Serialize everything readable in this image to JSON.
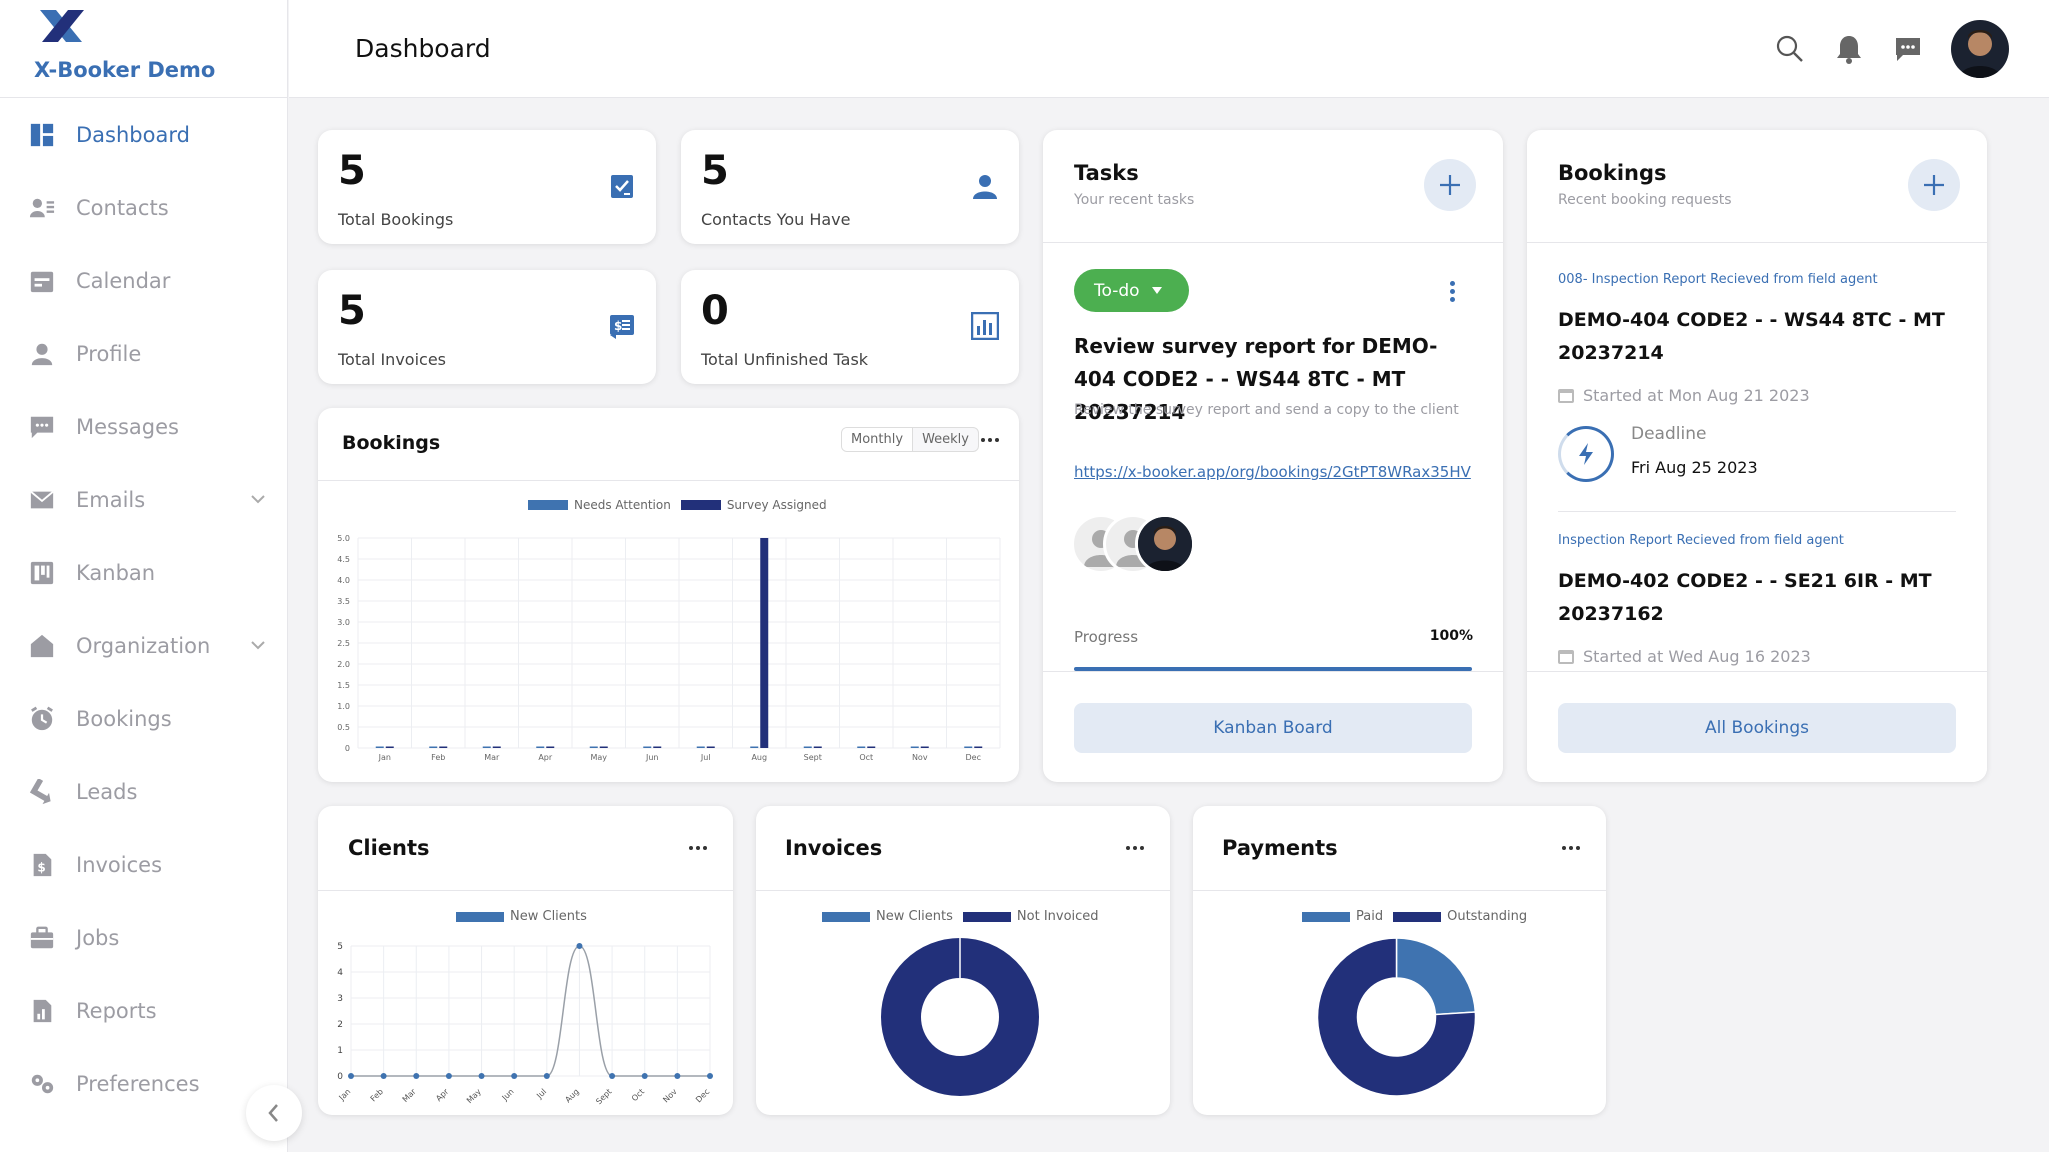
{
  "app": {
    "brand": "X-Booker Demo",
    "page_title": "Dashboard"
  },
  "sidebar": {
    "items": [
      {
        "label": "Dashboard",
        "icon": "dashboard-icon",
        "active": true
      },
      {
        "label": "Contacts",
        "icon": "contacts-icon"
      },
      {
        "label": "Calendar",
        "icon": "calendar-icon"
      },
      {
        "label": "Profile",
        "icon": "profile-icon"
      },
      {
        "label": "Messages",
        "icon": "messages-icon"
      },
      {
        "label": "Emails",
        "icon": "email-icon",
        "expandable": true
      },
      {
        "label": "Kanban",
        "icon": "kanban-icon"
      },
      {
        "label": "Organization",
        "icon": "organization-icon",
        "expandable": true
      },
      {
        "label": "Bookings",
        "icon": "bookings-icon"
      },
      {
        "label": "Leads",
        "icon": "leads-icon"
      },
      {
        "label": "Invoices",
        "icon": "invoices-icon"
      },
      {
        "label": "Jobs",
        "icon": "jobs-icon"
      },
      {
        "label": "Reports",
        "icon": "reports-icon"
      },
      {
        "label": "Preferences",
        "icon": "preferences-icon"
      }
    ]
  },
  "header": {
    "icons": [
      "search-icon",
      "bell-icon",
      "chat-icon"
    ]
  },
  "stats": [
    {
      "value": "5",
      "label": "Total Bookings",
      "icon": "checklist-icon"
    },
    {
      "value": "5",
      "label": "Contacts You Have",
      "icon": "person-icon"
    },
    {
      "value": "5",
      "label": "Total Invoices",
      "icon": "invoice-dollar-icon"
    },
    {
      "value": "0",
      "label": "Total Unfinished Task",
      "icon": "bar-chart-icon"
    }
  ],
  "bookings_chart": {
    "title": "Bookings",
    "toggle": [
      "Monthly",
      "Weekly"
    ],
    "selected_toggle": "Monthly"
  },
  "tasks": {
    "title": "Tasks",
    "subtitle": "Your recent tasks",
    "status": "To-do",
    "task_title": "Review survey report for DEMO-404 CODE2 - - WS44 8TC - MT 20237214",
    "task_desc": "Review the survey report and send a copy to the client",
    "link": "https://x-booker.app/org/bookings/2GtPT8WRax35HV",
    "progress_label": "Progress",
    "progress_value": "100%",
    "progress": 1.0,
    "button": "Kanban Board"
  },
  "bookings_panel": {
    "title": "Bookings",
    "subtitle": "Recent booking requests",
    "items": [
      {
        "tag": "008- Inspection Report Recieved from field agent",
        "title": "DEMO-404 CODE2 - - WS44 8TC - MT 20237214",
        "started": "Started at Mon Aug 21 2023",
        "deadline_label": "Deadline",
        "deadline": "Fri Aug 25 2023"
      },
      {
        "tag": "Inspection Report Recieved from field agent",
        "title": "DEMO-402 CODE2 - - SE21 6IR - MT 20237162",
        "started": "Started at Wed Aug 16 2023"
      }
    ],
    "button": "All Bookings"
  },
  "colors": {
    "accent": "#3a6fb3",
    "navy": "#22307a",
    "light_blue": "#3f73b0",
    "green": "#4caf50"
  },
  "chart_data": [
    {
      "type": "bar",
      "title": "Bookings",
      "categories": [
        "Jan",
        "Feb",
        "Mar",
        "Apr",
        "May",
        "Jun",
        "Jul",
        "Aug",
        "Sept",
        "Oct",
        "Nov",
        "Dec"
      ],
      "series": [
        {
          "name": "Needs Attention",
          "color": "#3f73b0",
          "values": [
            0,
            0,
            0,
            0,
            0,
            0,
            0,
            0,
            0,
            0,
            0,
            0
          ]
        },
        {
          "name": "Survey Assigned",
          "color": "#22307a",
          "values": [
            0,
            0,
            0,
            0,
            0,
            0,
            0,
            5,
            0,
            0,
            0,
            0
          ]
        }
      ],
      "yticks": [
        "0",
        "0.5",
        "1.0",
        "1.5",
        "2.0",
        "2.5",
        "3.0",
        "3.5",
        "4.0",
        "4.5",
        "5.0"
      ],
      "ylim": [
        0,
        5
      ]
    },
    {
      "type": "line",
      "title": "Clients",
      "categories": [
        "Jan",
        "Feb",
        "Mar",
        "Apr",
        "May",
        "Jun",
        "Jul",
        "Aug",
        "Sept",
        "Oct",
        "Nov",
        "Dec"
      ],
      "series": [
        {
          "name": "New Clients",
          "color": "#3f73b0",
          "values": [
            0,
            0,
            0,
            0,
            0,
            0,
            0,
            5,
            0,
            0,
            0,
            0
          ]
        }
      ],
      "yticks": [
        "0",
        "1",
        "2",
        "3",
        "4",
        "5"
      ],
      "ylim": [
        0,
        5
      ]
    },
    {
      "type": "pie",
      "title": "Invoices",
      "labels": [
        "New Clients",
        "Not Invoiced"
      ],
      "colors": [
        "#3f73b0",
        "#22307a"
      ],
      "values": [
        0,
        100
      ]
    },
    {
      "type": "pie",
      "title": "Payments",
      "labels": [
        "Paid",
        "Outstanding"
      ],
      "colors": [
        "#3f73b0",
        "#22307a"
      ],
      "values": [
        24,
        76
      ]
    }
  ]
}
